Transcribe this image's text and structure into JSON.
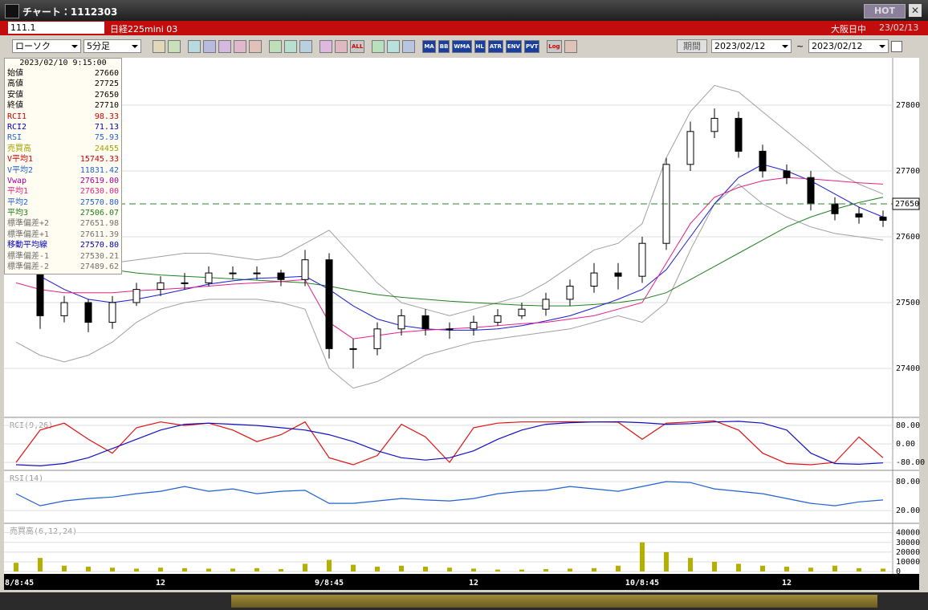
{
  "window": {
    "title": "チャート：1112303",
    "hot": "HOT",
    "code": "111.1",
    "name": "日経225mini 03",
    "session": "大阪日中",
    "date": "23/02/13"
  },
  "toolbar": {
    "chart_type": "ローソク",
    "interval": "5分足",
    "icons": [
      "ALL",
      "MA",
      "BB",
      "WMA",
      "HL",
      "ATR",
      "ENV",
      "PVT",
      "Log"
    ],
    "period": "期間",
    "from": "2023/02/12",
    "tilde": "~",
    "to": "2023/02/12"
  },
  "info": {
    "datetime": "2023/02/10 9:15:00",
    "rows": [
      {
        "label": "始値",
        "value": "27660",
        "color": "#000"
      },
      {
        "label": "高値",
        "value": "27725",
        "color": "#000"
      },
      {
        "label": "安値",
        "value": "27650",
        "color": "#000"
      },
      {
        "label": "終値",
        "value": "27710",
        "color": "#000"
      },
      {
        "label": "RCI1",
        "value": "98.33",
        "color": "#d00000"
      },
      {
        "label": "RCI2",
        "value": "71.13",
        "color": "#0000c0"
      },
      {
        "label": "RSI",
        "value": "75.93",
        "color": "#2060d0"
      },
      {
        "label": "売買高",
        "value": "24455",
        "color": "#a0a000"
      },
      {
        "label": "V平均1",
        "value": "15745.33",
        "color": "#d00000"
      },
      {
        "label": "V平均2",
        "value": "11831.42",
        "color": "#2060d0"
      },
      {
        "label": "Vwap",
        "value": "27619.00",
        "color": "#a000a0"
      },
      {
        "label": "平均1",
        "value": "27630.00",
        "color": "#e0208a"
      },
      {
        "label": "平均2",
        "value": "27570.80",
        "color": "#2060d0"
      },
      {
        "label": "平均3",
        "value": "27506.07",
        "color": "#208020"
      },
      {
        "label": "標準偏差+2",
        "value": "27651.98",
        "color": "#707070"
      },
      {
        "label": "標準偏差+1",
        "value": "27611.39",
        "color": "#707070"
      },
      {
        "label": "移動平均線",
        "value": "27570.80",
        "color": "#0000c0"
      },
      {
        "label": "標準偏差-1",
        "value": "27530.21",
        "color": "#707070"
      },
      {
        "label": "標準偏差-2",
        "value": "27489.62",
        "color": "#707070"
      }
    ]
  },
  "chart_data": [
    {
      "type": "candlestick",
      "categories": [
        "8/8:45",
        null,
        null,
        null,
        null,
        null,
        "12",
        null,
        null,
        null,
        null,
        null,
        null,
        "9/8:45",
        null,
        null,
        null,
        null,
        null,
        "12",
        null,
        null,
        null,
        null,
        null,
        null,
        "10/8:45",
        null,
        null,
        null,
        null,
        null,
        "12",
        null,
        null,
        null,
        null
      ],
      "open": [
        27560,
        27580,
        27480,
        27500,
        27470,
        27500,
        27520,
        27530,
        27530,
        27545,
        27545,
        27545,
        27535,
        27565,
        27430,
        27430,
        27460,
        27480,
        27460,
        27460,
        27470,
        27480,
        27490,
        27505,
        27525,
        27545,
        27540,
        27590,
        27710,
        27760,
        27780,
        27730,
        27700,
        27690,
        27650,
        27635,
        27630
      ],
      "high": [
        27590,
        27590,
        27510,
        27505,
        27510,
        27530,
        27540,
        27545,
        27555,
        27555,
        27555,
        27550,
        27580,
        27575,
        27445,
        27470,
        27490,
        27490,
        27470,
        27480,
        27490,
        27500,
        27515,
        27535,
        27560,
        27560,
        27600,
        27720,
        27775,
        27795,
        27790,
        27740,
        27710,
        27700,
        27660,
        27645,
        27640
      ],
      "low": [
        27550,
        27460,
        27470,
        27455,
        27460,
        27495,
        27510,
        27520,
        27525,
        27535,
        27535,
        27525,
        27525,
        27415,
        27400,
        27420,
        27450,
        27450,
        27445,
        27450,
        27465,
        27475,
        27480,
        27495,
        27515,
        27520,
        27530,
        27580,
        27700,
        27750,
        27720,
        27690,
        27680,
        27640,
        27625,
        27620,
        27615
      ],
      "close": [
        27580,
        27480,
        27500,
        27470,
        27500,
        27520,
        27530,
        27530,
        27545,
        27545,
        27545,
        27535,
        27565,
        27430,
        27430,
        27460,
        27480,
        27460,
        27460,
        27470,
        27480,
        27490,
        27505,
        27525,
        27545,
        27540,
        27590,
        27710,
        27760,
        27780,
        27730,
        27700,
        27690,
        27650,
        27635,
        27630,
        27625
      ],
      "series": [
        {
          "color": "#a0a0a0",
          "values": [
            27600,
            27600,
            27560,
            27555,
            27560,
            27565,
            27570,
            27575,
            27575,
            27570,
            27565,
            27570,
            27590,
            27610,
            27570,
            27530,
            27500,
            27490,
            27480,
            27490,
            27500,
            27510,
            27530,
            27555,
            27580,
            27590,
            27620,
            27720,
            27790,
            27830,
            27820,
            27790,
            27760,
            27730,
            27700,
            27680,
            27665
          ]
        },
        {
          "color": "#a0a0a0",
          "values": [
            27440,
            27420,
            27410,
            27420,
            27440,
            27470,
            27490,
            27500,
            27505,
            27505,
            27505,
            27500,
            27490,
            27400,
            27370,
            27380,
            27400,
            27420,
            27430,
            27440,
            27445,
            27450,
            27455,
            27460,
            27470,
            27480,
            27470,
            27500,
            27580,
            27650,
            27680,
            27650,
            27630,
            27615,
            27605,
            27600,
            27595
          ]
        },
        {
          "color": "#208020",
          "values": [
            27610,
            27590,
            27575,
            27560,
            27550,
            27545,
            27542,
            27540,
            27538,
            27536,
            27534,
            27532,
            27530,
            27525,
            27518,
            27512,
            27508,
            27505,
            27502,
            27500,
            27498,
            27496,
            27495,
            27495,
            27497,
            27500,
            27505,
            27515,
            27535,
            27555,
            27575,
            27595,
            27615,
            27630,
            27642,
            27652,
            27660
          ]
        },
        {
          "color": "#1a1ad0",
          "values": [
            27580,
            27540,
            27520,
            27505,
            27500,
            27505,
            27512,
            27520,
            27528,
            27533,
            27537,
            27538,
            27540,
            27520,
            27495,
            27475,
            27465,
            27460,
            27458,
            27458,
            27460,
            27465,
            27472,
            27480,
            27492,
            27505,
            27520,
            27550,
            27600,
            27650,
            27690,
            27710,
            27700,
            27685,
            27665,
            27645,
            27630
          ]
        },
        {
          "color": "#e0208a",
          "values": [
            27530,
            27520,
            27515,
            27515,
            27515,
            27518,
            27520,
            27522,
            27525,
            27528,
            27530,
            27532,
            27535,
            27470,
            27445,
            27450,
            27455,
            27458,
            27460,
            27462,
            27465,
            27468,
            27470,
            27475,
            27480,
            27490,
            27500,
            27560,
            27620,
            27660,
            27675,
            27685,
            27690,
            27688,
            27685,
            27682,
            27680
          ]
        }
      ],
      "current_price": 27650,
      "ylim": [
        27328,
        27872
      ],
      "yticks": [
        27400,
        27500,
        27600,
        27700,
        27800
      ],
      "grid": true
    },
    {
      "type": "line",
      "title": "RCI(9,26)",
      "series": [
        {
          "color": "#e01010",
          "values": [
            -80,
            60,
            90,
            20,
            -40,
            70,
            95,
            80,
            90,
            60,
            10,
            40,
            95,
            -60,
            -90,
            -50,
            85,
            30,
            -80,
            70,
            90,
            95,
            95,
            96,
            95,
            94,
            20,
            90,
            95,
            100,
            60,
            -40,
            -85,
            -90,
            -80,
            30,
            -60
          ]
        },
        {
          "color": "#1010c0",
          "values": [
            -90,
            -95,
            -85,
            -60,
            -20,
            20,
            60,
            85,
            90,
            85,
            80,
            70,
            60,
            40,
            10,
            -30,
            -60,
            -70,
            -60,
            -30,
            20,
            60,
            85,
            92,
            95,
            96,
            92,
            85,
            88,
            95,
            98,
            90,
            60,
            -40,
            -85,
            -88,
            -82
          ]
        }
      ],
      "ylim": [
        -111,
        108
      ],
      "yticks": [
        {
          "value": 80,
          "label": "80.00"
        },
        {
          "value": 0,
          "label": "0.00"
        },
        {
          "value": -80,
          "label": "-80.00"
        }
      ]
    },
    {
      "type": "line",
      "title": "RSI(14)",
      "series": [
        {
          "color": "#2060d0",
          "values": [
            55,
            30,
            40,
            45,
            48,
            55,
            60,
            70,
            60,
            65,
            55,
            60,
            62,
            35,
            35,
            40,
            45,
            42,
            40,
            45,
            55,
            60,
            62,
            70,
            65,
            60,
            70,
            80,
            78,
            65,
            60,
            55,
            45,
            35,
            30,
            38,
            42
          ]
        }
      ],
      "ylim": [
        -3,
        100
      ],
      "yticks": [
        {
          "value": 80,
          "label": "80.00"
        },
        {
          "value": 20,
          "label": "20.00"
        }
      ]
    },
    {
      "type": "bar",
      "title": "売買高(6,12,24)",
      "color": "#b5b000",
      "values": [
        9000,
        14000,
        6000,
        5000,
        4000,
        3000,
        4000,
        3500,
        3000,
        3000,
        3500,
        2500,
        8000,
        12000,
        7000,
        5000,
        6000,
        5000,
        4000,
        3000,
        2000,
        2000,
        2500,
        3000,
        3500,
        6000,
        30000,
        20000,
        14000,
        10000,
        8000,
        6000,
        5000,
        4000,
        6000,
        3500,
        3000
      ],
      "ylim": [
        -1600,
        48000
      ],
      "yticks": [
        0,
        10000,
        20000,
        30000,
        40000
      ]
    }
  ]
}
